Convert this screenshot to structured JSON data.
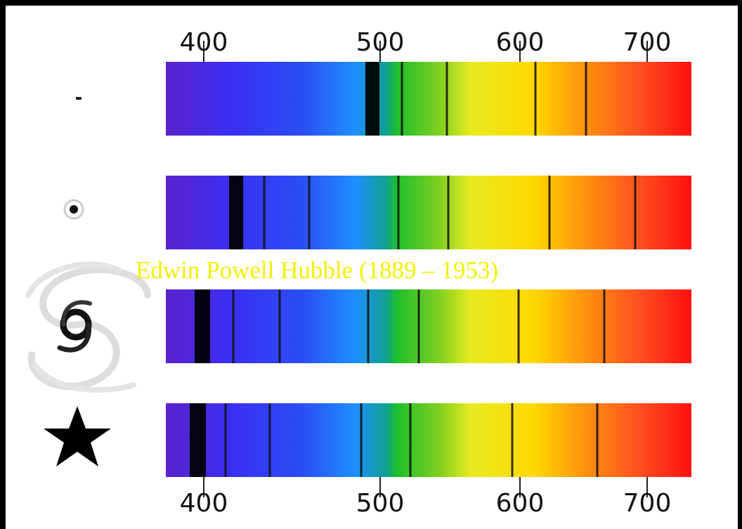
{
  "top_axis": {
    "ticks": [
      400,
      500,
      600,
      700
    ]
  },
  "bottom_axis": {
    "ticks": [
      400,
      500,
      600,
      700
    ]
  },
  "caption": "Edwin Powell Hubble (1889 – 1953)"
}
